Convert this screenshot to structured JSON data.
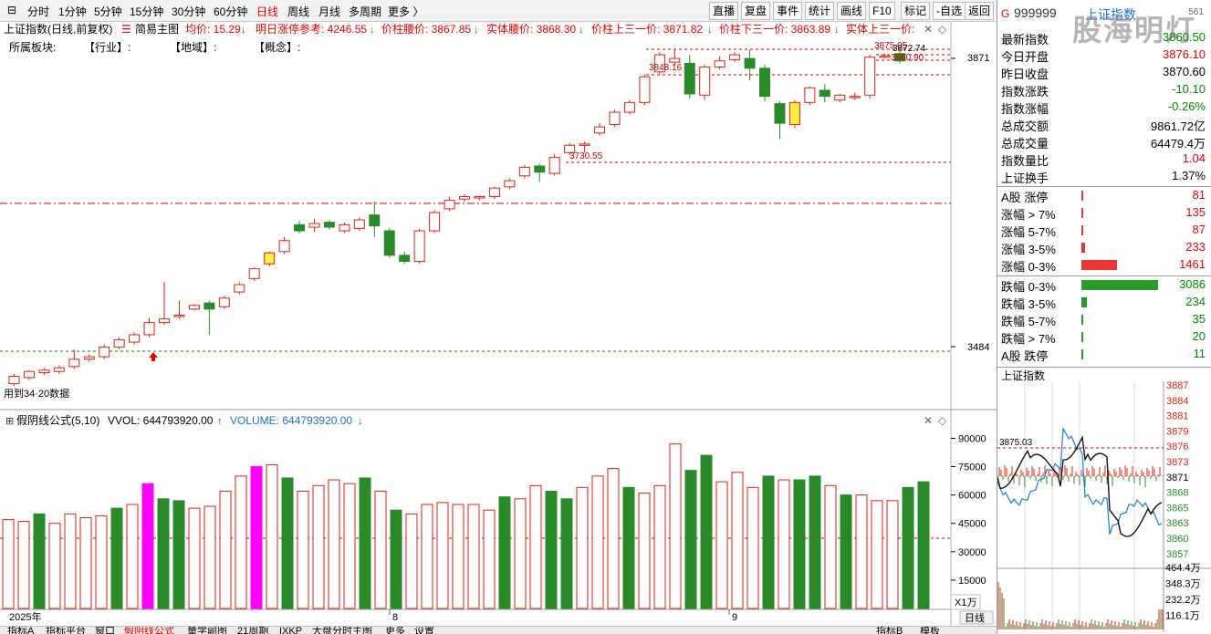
{
  "toolbar": {
    "periods": [
      "分时",
      "1分钟",
      "5分钟",
      "15分钟",
      "30分钟",
      "60分钟",
      "日线",
      "周线",
      "月线",
      "多周期",
      "更多 〉"
    ],
    "active": "日线",
    "buttons": [
      "直播",
      "复盘",
      "事件",
      "统计",
      "画线",
      "F10",
      "标记",
      "-自选",
      "返回"
    ]
  },
  "chart_header": {
    "name": "上证指数(日线,前复权)",
    "main_label": "简易主图",
    "avg_label": "均价: 15.29",
    "limit_label": "明日涨停参考: 4246.55",
    "waist_label": "价柱腰价: 3867.85",
    "body_waist_label": "实体腰价: 3868.30",
    "upper_third_label": "价柱上三一价: 3871.82",
    "lower_third_label": "价柱下三一价: 3863.89",
    "body_upper_label": "实体上三一价:",
    "sector_label": "所属板块:",
    "industry_label": "【行业】:",
    "region_label": "【地域】:",
    "concept_label": "【概念】:"
  },
  "price_axis": {
    "top": "3871",
    "mid": "3484"
  },
  "annotations": {
    "high": "3872.74",
    "high2": "3875.05",
    "low_mark": "3860.90",
    "mark1": "3848.16",
    "mark2": "3730.55",
    "left_note": "用到34·20数据"
  },
  "volume_header": {
    "title": "假阴线公式(5,10)",
    "vvol": "VVOL: 644793920.00",
    "volume": "VOLUME: 644793920.00"
  },
  "volume_axis": [
    "90000",
    "75000",
    "60000",
    "45000",
    "30000",
    "15000"
  ],
  "volume_unit": "X1万",
  "time_axis": [
    "2025年",
    "8",
    "9"
  ],
  "bottom_tabs": [
    "指标A",
    "指标平台",
    "窗口",
    "假阴线公式",
    "量学副图",
    "21周期",
    "IXKP",
    "大盘分时主图",
    "更多",
    "设置",
    "指标B",
    "模板"
  ],
  "bottom_right_tab": "日线",
  "info": {
    "code_prefix": "G",
    "code": "999999",
    "name": "上证指数",
    "watermark": "股海明灯",
    "corner": "561",
    "rows": [
      {
        "label": "最新指数",
        "value": "3860.50",
        "color": "green"
      },
      {
        "label": "今日开盘",
        "value": "3876.10",
        "color": "red"
      },
      {
        "label": "昨日收盘",
        "value": "3870.60",
        "color": "black"
      },
      {
        "label": "指数涨跌",
        "value": "-10.10",
        "color": "green"
      },
      {
        "label": "指数涨幅",
        "value": "-0.26%",
        "color": "green"
      },
      {
        "label": "总成交额",
        "value": "9861.72亿",
        "color": "black"
      },
      {
        "label": "总成交量",
        "value": "64479.4万",
        "color": "black"
      },
      {
        "label": "指数量比",
        "value": "1.04",
        "color": "red"
      },
      {
        "label": "上证换手",
        "value": "1.37%",
        "color": "black"
      }
    ],
    "breadth": [
      {
        "label": "A股 涨停",
        "value": "81",
        "color": "red",
        "fraction": 0.02
      },
      {
        "label": "涨幅 > 7%",
        "value": "135",
        "color": "red",
        "fraction": 0.015
      },
      {
        "label": "涨幅 5-7%",
        "value": "87",
        "color": "red",
        "fraction": 0.01
      },
      {
        "label": "涨幅 3-5%",
        "value": "233",
        "color": "red",
        "fraction": 0.05
      },
      {
        "label": "涨幅 0-3%",
        "value": "1461",
        "color": "red",
        "fraction": 0.47
      },
      {
        "label": "跌幅 0-3%",
        "value": "3086",
        "color": "green",
        "fraction": 1.0
      },
      {
        "label": "跌幅 3-5%",
        "value": "234",
        "color": "green",
        "fraction": 0.07
      },
      {
        "label": "跌幅 5-7%",
        "value": "35",
        "color": "green",
        "fraction": 0.01
      },
      {
        "label": "跌幅 > 7%",
        "value": "20",
        "color": "green",
        "fraction": 0.01
      },
      {
        "label": "A股 跌停",
        "value": "11",
        "color": "green",
        "fraction": 0.01
      }
    ]
  },
  "mini_chart": {
    "title": "上证指数",
    "price_ticks": [
      "3887",
      "3884",
      "3881",
      "3879",
      "3876",
      "3873",
      "3871",
      "3868",
      "3865",
      "3863",
      "3860",
      "3857"
    ],
    "mark": "3875.03",
    "vol_ticks": [
      "464.4万",
      "348.3万",
      "232.2万",
      "116.1万"
    ]
  },
  "candles": [
    [
      3440,
      3452,
      3436,
      3456
    ],
    [
      3450,
      3460,
      3446,
      3462
    ],
    [
      3458,
      3462,
      3454,
      3466
    ],
    [
      3460,
      3466,
      3456,
      3470
    ],
    [
      3468,
      3480,
      3464,
      3496
    ],
    [
      3480,
      3484,
      3476,
      3488
    ],
    [
      3484,
      3500,
      3480,
      3504
    ],
    [
      3500,
      3512,
      3496,
      3516
    ],
    [
      3508,
      3520,
      3504,
      3524
    ],
    [
      3520,
      3540,
      3516,
      3548
    ],
    [
      3540,
      3546,
      3536,
      3606
    ],
    [
      3550,
      3552,
      3546,
      3576
    ],
    [
      3562,
      3568,
      3560,
      3570
    ],
    [
      3572,
      3562,
      3520,
      3576
    ],
    [
      3566,
      3580,
      3562,
      3584
    ],
    [
      3590,
      3602,
      3586,
      3606
    ],
    [
      3612,
      3628,
      3608,
      3630
    ],
    [
      3636,
      3654,
      3632,
      3656
    ],
    [
      3656,
      3674,
      3652,
      3680
    ],
    [
      3700,
      3690,
      3686,
      3706
    ],
    [
      3696,
      3702,
      3688,
      3710
    ],
    [
      3704,
      3696,
      3692,
      3708
    ],
    [
      3690,
      3700,
      3686,
      3704
    ],
    [
      3694,
      3708,
      3690,
      3712
    ],
    [
      3716,
      3698,
      3680,
      3738
    ],
    [
      3690,
      3650,
      3646,
      3694
    ],
    [
      3650,
      3640,
      3636,
      3656
    ],
    [
      3640,
      3690,
      3636,
      3694
    ],
    [
      3690,
      3720,
      3686,
      3724
    ],
    [
      3726,
      3740,
      3722,
      3746
    ],
    [
      3742,
      3746,
      3738,
      3750
    ],
    [
      3744,
      3746,
      3740,
      3748
    ],
    [
      3746,
      3760,
      3742,
      3762
    ],
    [
      3762,
      3772,
      3758,
      3776
    ],
    [
      3780,
      3794,
      3776,
      3798
    ],
    [
      3796,
      3786,
      3770,
      3800
    ],
    [
      3784,
      3810,
      3780,
      3816
    ],
    [
      3818,
      3830,
      3814,
      3834
    ],
    [
      3830,
      3832,
      3818,
      3836
    ],
    [
      3850,
      3860,
      3846,
      3866
    ],
    [
      3864,
      3884,
      3860,
      3888
    ],
    [
      3884,
      3900,
      3880,
      3904
    ],
    [
      3900,
      3942,
      3896,
      3946
    ],
    [
      3950,
      3978,
      3946,
      3982
    ],
    [
      3966,
      3972,
      3960,
      3986
    ],
    [
      3964,
      3914,
      3906,
      3978
    ],
    [
      3912,
      3958,
      3904,
      3962
    ],
    [
      3958,
      3968,
      3954,
      3976
    ],
    [
      3970,
      3978,
      3966,
      3982
    ],
    [
      3972,
      3956,
      3936,
      3986
    ],
    [
      3956,
      3910,
      3902,
      3962
    ],
    [
      3898,
      3866,
      3840,
      3902
    ],
    [
      3864,
      3900,
      3858,
      3904
    ],
    [
      3900,
      3924,
      3896,
      3926
    ],
    [
      3920,
      3910,
      3900,
      3930
    ],
    [
      3904,
      3912,
      3900,
      3914
    ],
    [
      3908,
      3910,
      3904,
      3916
    ],
    [
      3912,
      3974,
      3906,
      3978
    ],
    [
      3976,
      3976,
      3972,
      3980
    ],
    [
      3980,
      3968,
      3964,
      3984
    ]
  ],
  "volumes": [
    [
      47,
      "u"
    ],
    [
      46,
      "u"
    ],
    [
      50,
      "d"
    ],
    [
      45,
      "u"
    ],
    [
      50,
      "u"
    ],
    [
      48,
      "u"
    ],
    [
      49,
      "u"
    ],
    [
      53,
      "d"
    ],
    [
      55,
      "u"
    ],
    [
      66,
      "m"
    ],
    [
      58,
      "d"
    ],
    [
      57,
      "d"
    ],
    [
      53,
      "u"
    ],
    [
      54,
      "u"
    ],
    [
      62,
      "u"
    ],
    [
      70,
      "u"
    ],
    [
      75,
      "m"
    ],
    [
      76,
      "u"
    ],
    [
      69,
      "d"
    ],
    [
      62,
      "u"
    ],
    [
      65,
      "u"
    ],
    [
      68,
      "u"
    ],
    [
      66,
      "u"
    ],
    [
      69,
      "d"
    ],
    [
      62,
      "u"
    ],
    [
      52,
      "d"
    ],
    [
      50,
      "u"
    ],
    [
      55,
      "u"
    ],
    [
      56,
      "u"
    ],
    [
      55,
      "u"
    ],
    [
      55,
      "u"
    ],
    [
      52,
      "u"
    ],
    [
      59,
      "d"
    ],
    [
      58,
      "u"
    ],
    [
      65,
      "u"
    ],
    [
      62,
      "d"
    ],
    [
      58,
      "d"
    ],
    [
      64,
      "u"
    ],
    [
      70,
      "u"
    ],
    [
      74,
      "u"
    ],
    [
      64,
      "d"
    ],
    [
      61,
      "u"
    ],
    [
      65,
      "u"
    ],
    [
      87,
      "u"
    ],
    [
      73,
      "d"
    ],
    [
      81,
      "d"
    ],
    [
      67,
      "u"
    ],
    [
      72,
      "u"
    ],
    [
      64,
      "u"
    ],
    [
      70,
      "d"
    ],
    [
      68,
      "u"
    ],
    [
      68,
      "d"
    ],
    [
      70,
      "d"
    ],
    [
      65,
      "u"
    ],
    [
      60,
      "d"
    ],
    [
      60,
      "u"
    ],
    [
      57,
      "u"
    ],
    [
      57,
      "u"
    ],
    [
      64,
      "d"
    ],
    [
      67,
      "d"
    ]
  ]
}
